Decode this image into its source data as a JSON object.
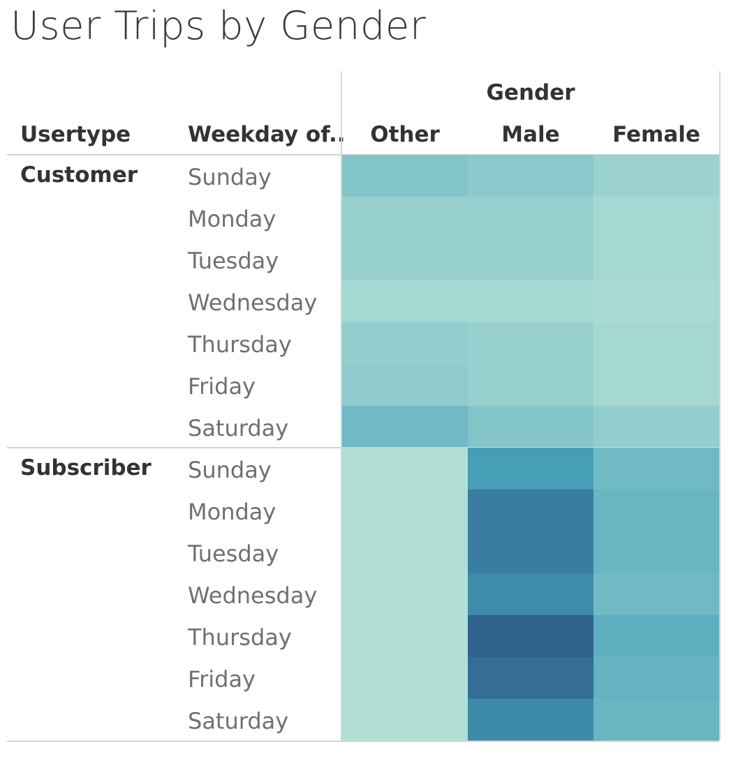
{
  "chart_data": {
    "type": "heatmap",
    "title": "User Trips by Gender",
    "row_headers": [
      "Usertype",
      "Weekday of.."
    ],
    "column_group_label": "Gender",
    "columns": [
      "Other",
      "Male",
      "Female"
    ],
    "groups": [
      {
        "usertype": "Customer",
        "rows": [
          {
            "weekday": "Sunday",
            "values": [
              0.28,
              0.24,
              0.16
            ]
          },
          {
            "weekday": "Monday",
            "values": [
              0.18,
              0.18,
              0.1
            ]
          },
          {
            "weekday": "Tuesday",
            "values": [
              0.18,
              0.18,
              0.1
            ]
          },
          {
            "weekday": "Wednesday",
            "values": [
              0.1,
              0.1,
              0.08
            ]
          },
          {
            "weekday": "Thursday",
            "values": [
              0.2,
              0.18,
              0.1
            ]
          },
          {
            "weekday": "Friday",
            "values": [
              0.22,
              0.18,
              0.1
            ]
          },
          {
            "weekday": "Saturday",
            "values": [
              0.38,
              0.28,
              0.2
            ]
          }
        ]
      },
      {
        "usertype": "Subscriber",
        "rows": [
          {
            "weekday": "Sunday",
            "values": [
              0.04,
              0.62,
              0.38
            ]
          },
          {
            "weekday": "Monday",
            "values": [
              0.04,
              0.8,
              0.42
            ]
          },
          {
            "weekday": "Tuesday",
            "values": [
              0.04,
              0.8,
              0.42
            ]
          },
          {
            "weekday": "Wednesday",
            "values": [
              0.04,
              0.72,
              0.38
            ]
          },
          {
            "weekday": "Thursday",
            "values": [
              0.04,
              0.95,
              0.48
            ]
          },
          {
            "weekday": "Friday",
            "values": [
              0.04,
              0.88,
              0.45
            ]
          },
          {
            "weekday": "Saturday",
            "values": [
              0.04,
              0.73,
              0.42
            ]
          }
        ]
      }
    ],
    "color_scale": {
      "low": "#b9e3d8",
      "mid": "#47a2ba",
      "high": "#2c5886"
    },
    "grid": false
  }
}
